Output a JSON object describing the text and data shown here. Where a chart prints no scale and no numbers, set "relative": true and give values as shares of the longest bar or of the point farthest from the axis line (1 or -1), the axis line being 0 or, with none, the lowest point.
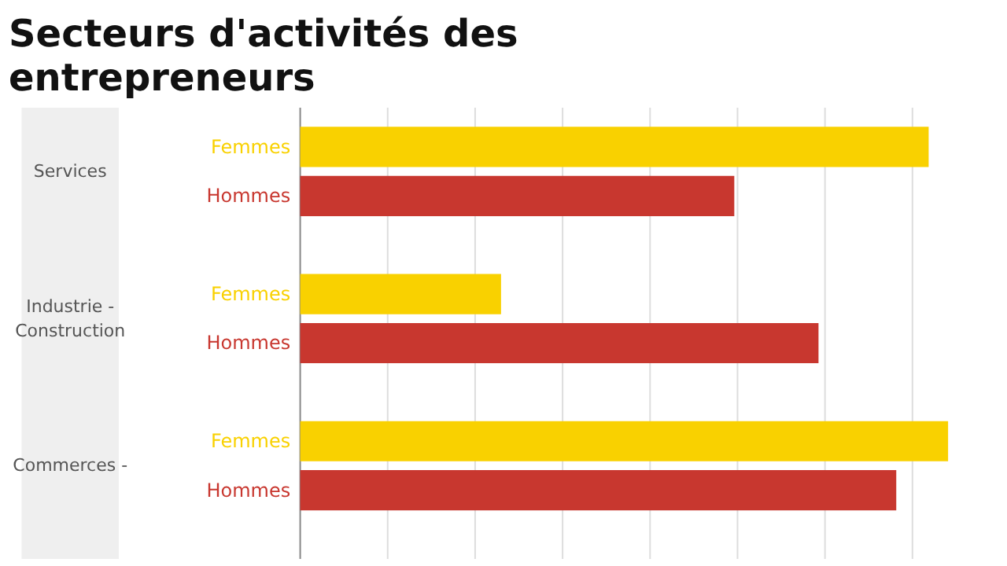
{
  "chart_data": {
    "type": "bar",
    "orientation": "horizontal",
    "relative": true,
    "title": "Secteurs d'activités des\nentrepreneurs",
    "categories": [
      "Services",
      "Industrie - Construction",
      "Commerces -"
    ],
    "series": [
      {
        "name": "Femmes",
        "color": "#f9d100",
        "values": [
          0.97,
          0.31,
          1.0
        ]
      },
      {
        "name": "Hommes",
        "color": "#c8372f",
        "values": [
          0.67,
          0.8,
          0.92
        ]
      }
    ],
    "grid": "x"
  }
}
